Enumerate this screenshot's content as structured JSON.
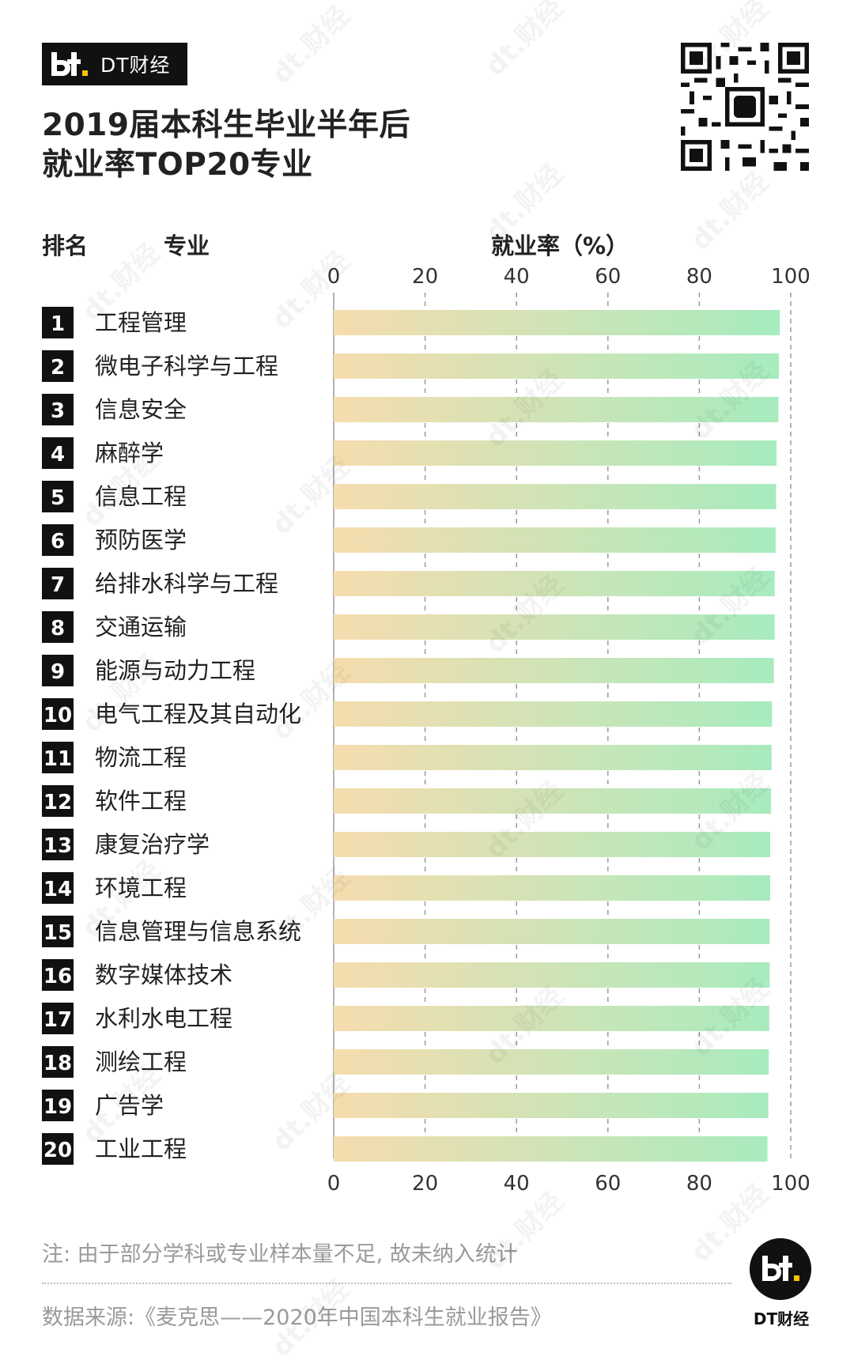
{
  "brand": {
    "logo_text": "dt.",
    "name": "DT财经"
  },
  "title_line1": "2019届本科生毕业半年后",
  "title_line2": "就业率TOP20专业",
  "headers": {
    "rank": "排名",
    "major": "专业",
    "rate": "就业率（%）"
  },
  "watermark": "dt.财经",
  "note": "注: 由于部分学科或专业样本量不足, 故未纳入统计",
  "source": "数据来源:《麦克思——2020年中国本科生就业报告》",
  "footer_brand": "DT财经",
  "colors": {
    "rank_box": "#111111",
    "bar_start": "#f6dcae",
    "bar_end": "#a4ecbf",
    "grid": "#9a9a9a",
    "axis_text": "#333333"
  },
  "chart_data": {
    "type": "bar",
    "orientation": "horizontal",
    "title": "2019届本科生毕业半年后就业率TOP20专业",
    "xlabel": "就业率（%）",
    "xlim": [
      0,
      100
    ],
    "xticks": [
      0,
      20,
      40,
      60,
      80,
      100
    ],
    "grid": true,
    "categories": [
      "工程管理",
      "微电子科学与工程",
      "信息安全",
      "麻醉学",
      "信息工程",
      "预防医学",
      "给排水科学与工程",
      "交通运输",
      "能源与动力工程",
      "电气工程及其自动化",
      "物流工程",
      "软件工程",
      "康复治疗学",
      "环境工程",
      "信息管理与信息系统",
      "数字媒体技术",
      "水利水电工程",
      "测绘工程",
      "广告学",
      "工业工程"
    ],
    "ranks": [
      "1",
      "2",
      "3",
      "4",
      "5",
      "6",
      "7",
      "8",
      "9",
      "10",
      "11",
      "12",
      "13",
      "14",
      "15",
      "16",
      "17",
      "18",
      "19",
      "20"
    ],
    "values": [
      97.6,
      97.4,
      97.3,
      96.9,
      96.8,
      96.7,
      96.5,
      96.5,
      96.3,
      95.9,
      95.8,
      95.7,
      95.5,
      95.5,
      95.4,
      95.4,
      95.3,
      95.2,
      95.1,
      94.9
    ]
  }
}
